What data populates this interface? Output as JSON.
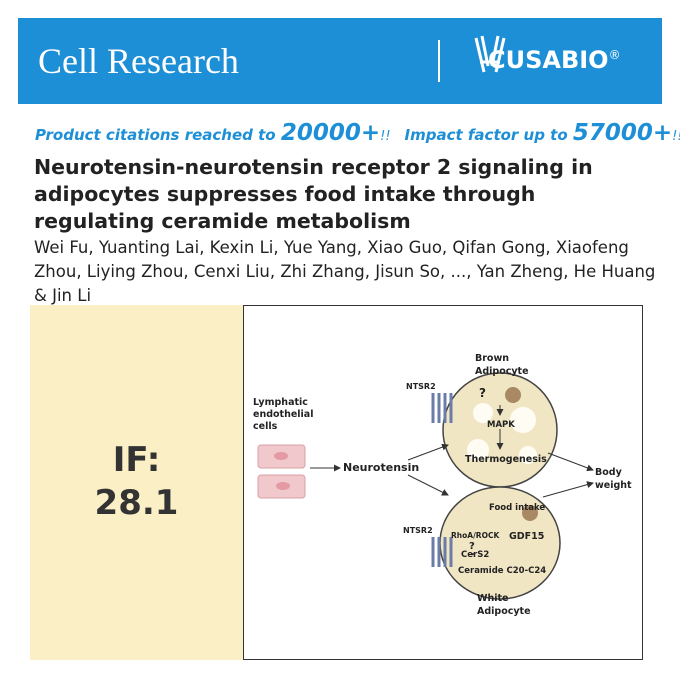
{
  "header": {
    "journal": "Cell Research",
    "brand": "CUSABIO",
    "brand_mark": "®"
  },
  "banner": {
    "text1": "Product citations reached to ",
    "number1": "20000+",
    "exclaim1": "!!",
    "text2": "Impact factor up to ",
    "number2": "57000+",
    "exclaim2": "!!"
  },
  "article": {
    "title": "Neurotensin-neurotensin receptor 2 signaling in adipocytes suppresses food intake through regulating ceramide metabolism",
    "authors": "Wei Fu, Yuanting Lai, Kexin Li, Yue Yang, Xiao Guo, Qifan Gong, Xiaofeng Zhou, Liying Zhou, Cenxi Liu, Zhi Zhang, Jisun So, ..., Yan Zheng, He Huang & Jin Li"
  },
  "impact": {
    "label": "IF:",
    "value": 28.1
  },
  "diagram": {
    "cells": [
      "Lymphatic",
      "endothelial",
      "cells"
    ],
    "ligand": "Neurotensin",
    "receptor_top": "NTSR2",
    "receptor_bottom": "NTSR2",
    "brown": [
      "Brown",
      "Adipocyte"
    ],
    "brown_unknown": "?",
    "mapk": "MAPK",
    "thermogenesis": "Thermogenesis",
    "body_weight": [
      "Body",
      "weight"
    ],
    "food_intake": "Food intake",
    "rhoa": "RhoA/ROCK",
    "white_unknown": "?",
    "gdf15": "GDF15",
    "cers2": "CerS2",
    "ceramide": "Ceramide C20-C24",
    "white": [
      "White",
      "Adipocyte"
    ]
  }
}
